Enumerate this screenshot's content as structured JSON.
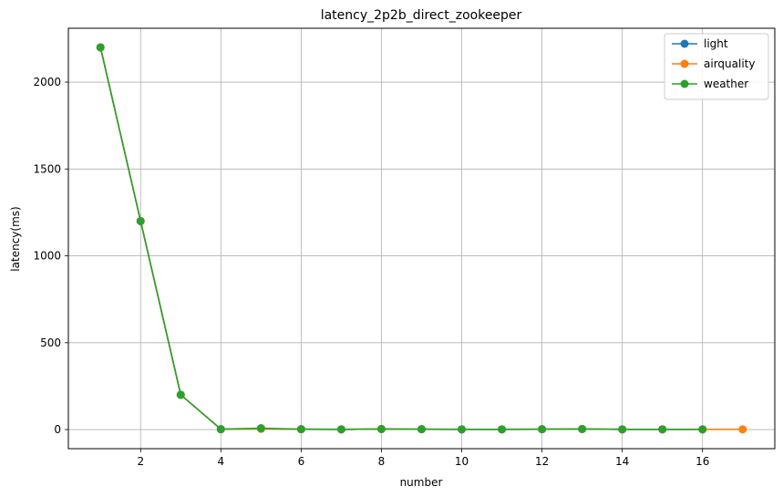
{
  "chart_data": {
    "type": "line",
    "title": "latency_2p2b_direct_zookeeper",
    "xlabel": "number",
    "ylabel": "latency(ms)",
    "xlim": [
      0.2,
      17.8
    ],
    "ylim": [
      -110,
      2310
    ],
    "xticks": [
      2,
      4,
      6,
      8,
      10,
      12,
      14,
      16
    ],
    "yticks": [
      0,
      500,
      1000,
      1500,
      2000
    ],
    "grid": true,
    "legend_position": "top-right",
    "series": [
      {
        "name": "light",
        "color": "#1f77b4",
        "marker": "circle",
        "x": [
          1,
          2,
          3,
          4,
          5,
          6,
          7,
          8,
          9,
          10,
          11,
          12,
          13,
          14,
          15,
          16
        ],
        "y": [
          2200,
          1200,
          200,
          2,
          5,
          2,
          1,
          3,
          2,
          1,
          1,
          2,
          3,
          1,
          1,
          1
        ]
      },
      {
        "name": "airquality",
        "color": "#ff7f0e",
        "marker": "circle",
        "x": [
          1,
          2,
          3,
          4,
          5,
          6,
          7,
          8,
          9,
          10,
          11,
          12,
          13,
          14,
          15,
          16,
          17
        ],
        "y": [
          2200,
          1200,
          200,
          2,
          4,
          2,
          1,
          3,
          2,
          1,
          1,
          2,
          3,
          1,
          1,
          1,
          1
        ]
      },
      {
        "name": "weather",
        "color": "#2ca02c",
        "marker": "circle",
        "x": [
          1,
          2,
          3,
          4,
          5,
          6,
          7,
          8,
          9,
          10,
          11,
          12,
          13,
          14,
          15,
          16
        ],
        "y": [
          2200,
          1200,
          200,
          2,
          8,
          2,
          1,
          3,
          2,
          1,
          1,
          2,
          3,
          1,
          1,
          1
        ]
      }
    ]
  }
}
